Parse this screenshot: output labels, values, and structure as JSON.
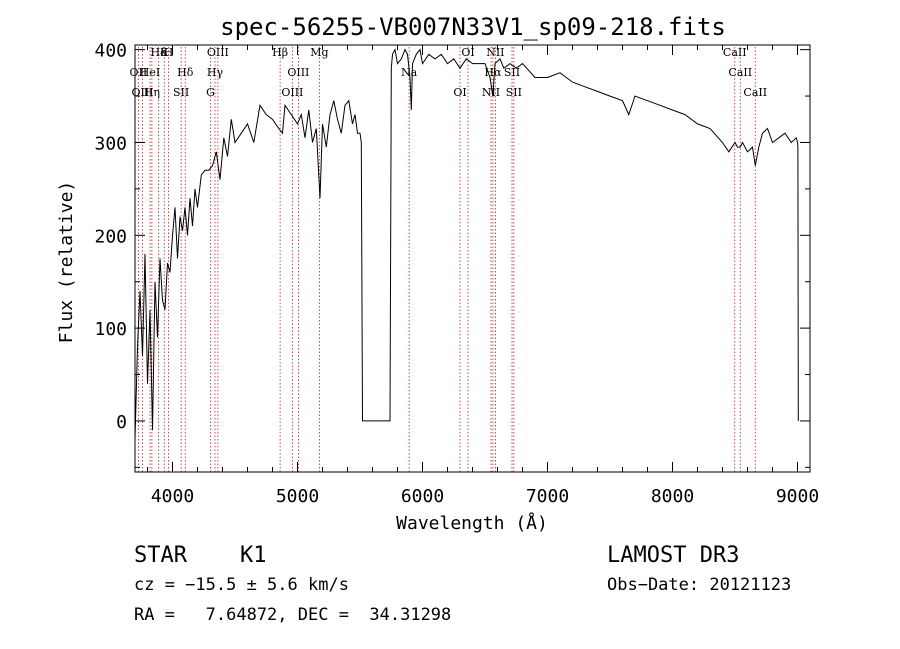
{
  "chart_data": {
    "type": "line",
    "title": "spec-56255-VB007N33V1_sp09-218.fits",
    "xlabel": "Wavelength (Å)",
    "ylabel": "Flux (relative)",
    "xlim": [
      3700,
      9100
    ],
    "ylim": [
      -55,
      405
    ],
    "xticks": [
      4000,
      5000,
      6000,
      7000,
      8000,
      9000
    ],
    "yticks": [
      0,
      100,
      200,
      300,
      400
    ],
    "series": [
      {
        "name": "flux",
        "x": [
          3700,
          3720,
          3740,
          3760,
          3780,
          3800,
          3820,
          3840,
          3860,
          3880,
          3900,
          3920,
          3940,
          3960,
          3980,
          4000,
          4020,
          4040,
          4060,
          4080,
          4100,
          4120,
          4140,
          4160,
          4180,
          4200,
          4230,
          4260,
          4290,
          4320,
          4350,
          4380,
          4410,
          4440,
          4470,
          4500,
          4550,
          4600,
          4650,
          4700,
          4750,
          4800,
          4850,
          4880,
          4900,
          4950,
          5000,
          5030,
          5060,
          5090,
          5120,
          5150,
          5180,
          5200,
          5230,
          5260,
          5290,
          5320,
          5350,
          5380,
          5410,
          5440,
          5460,
          5480,
          5500,
          5510,
          5520,
          5530,
          5740,
          5750,
          5760,
          5780,
          5800,
          5830,
          5860,
          5880,
          5900,
          5910,
          5920,
          5950,
          5980,
          6000,
          6050,
          6100,
          6150,
          6200,
          6250,
          6300,
          6350,
          6400,
          6450,
          6500,
          6540,
          6563,
          6580,
          6620,
          6650,
          6700,
          6750,
          6800,
          6900,
          7000,
          7100,
          7200,
          7300,
          7400,
          7500,
          7600,
          7650,
          7700,
          7800,
          7900,
          8000,
          8100,
          8200,
          8300,
          8400,
          8450,
          8500,
          8520,
          8542,
          8560,
          8600,
          8640,
          8662,
          8690,
          8720,
          8760,
          8800,
          8850,
          8900,
          8950,
          8990,
          9000,
          9003,
          9006
        ],
        "values": [
          -20,
          80,
          140,
          70,
          180,
          40,
          120,
          -10,
          150,
          90,
          175,
          130,
          120,
          170,
          160,
          200,
          230,
          175,
          220,
          205,
          230,
          200,
          240,
          210,
          250,
          230,
          265,
          270,
          270,
          275,
          290,
          260,
          305,
          285,
          325,
          300,
          310,
          320,
          300,
          340,
          330,
          325,
          315,
          310,
          340,
          330,
          320,
          330,
          305,
          335,
          300,
          315,
          240,
          320,
          295,
          330,
          345,
          325,
          310,
          340,
          345,
          320,
          330,
          310,
          310,
          300,
          0,
          0,
          0,
          380,
          395,
          400,
          385,
          390,
          400,
          395,
          370,
          335,
          385,
          395,
          400,
          385,
          395,
          390,
          395,
          385,
          390,
          380,
          390,
          385,
          385,
          385,
          370,
          350,
          385,
          390,
          380,
          385,
          380,
          385,
          370,
          370,
          375,
          365,
          360,
          355,
          350,
          345,
          330,
          350,
          345,
          340,
          335,
          330,
          320,
          315,
          300,
          290,
          300,
          295,
          295,
          300,
          290,
          295,
          275,
          295,
          310,
          315,
          300,
          305,
          310,
          300,
          305,
          300,
          295,
          0
        ]
      }
    ],
    "lines": [
      {
        "label": "Hδ",
        "x": 3889
      },
      {
        "label": "OII",
        "x": 3727
      },
      {
        "label": "OIII",
        "x": 3760
      },
      {
        "label": "K",
        "x": 3934
      },
      {
        "label": "HeI",
        "x": 3820
      },
      {
        "label": "Hη",
        "x": 3835
      },
      {
        "label": "H",
        "x": 3968
      },
      {
        "label": "Hδ",
        "x": 4102
      },
      {
        "label": "SII",
        "x": 4069
      },
      {
        "label": "OIII",
        "x": 4363
      },
      {
        "label": "Hγ",
        "x": 4340
      },
      {
        "label": "G",
        "x": 4304
      },
      {
        "label": "Hβ",
        "x": 4861
      },
      {
        "label": "OIII",
        "x": 5007
      },
      {
        "label": "OIII",
        "x": 4959
      },
      {
        "label": "Mg",
        "x": 5175
      },
      {
        "label": "Na",
        "x": 5893
      },
      {
        "label": "OI",
        "x": 6300
      },
      {
        "label": "OI",
        "x": 6364
      },
      {
        "label": "Hα",
        "x": 6563
      },
      {
        "label": "NII",
        "x": 6548
      },
      {
        "label": "NII",
        "x": 6583
      },
      {
        "label": "SII",
        "x": 6716
      },
      {
        "label": "SII",
        "x": 6731
      },
      {
        "label": "CaII",
        "x": 8498
      },
      {
        "label": "CaII",
        "x": 8542
      },
      {
        "label": "CaII",
        "x": 8662
      }
    ]
  },
  "info": {
    "object_class": "STAR",
    "subclass": "K1",
    "survey": "LAMOST DR3",
    "cz": "cz = −15.5 ± 5.6 km/s",
    "obs_date": "Obs−Date: 20121123",
    "coords": "RA =   7.64872, DEC =  34.31298"
  }
}
